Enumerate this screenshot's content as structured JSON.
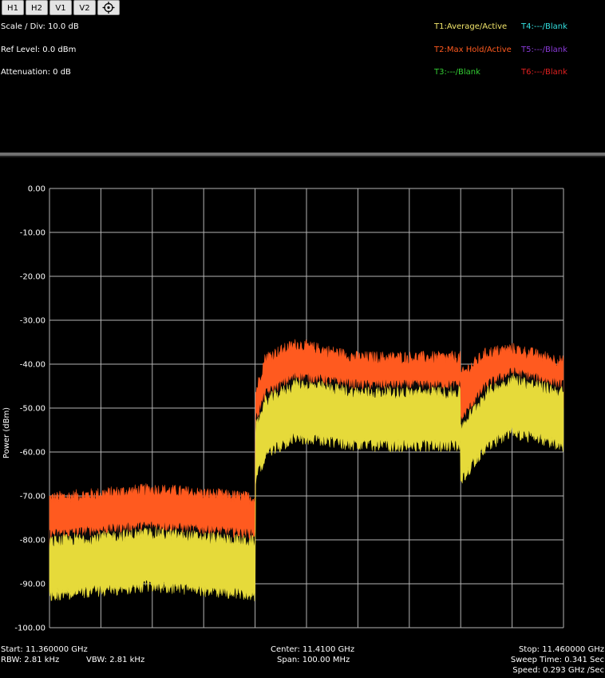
{
  "toolbar": {
    "buttons": [
      {
        "label": "H1"
      },
      {
        "label": "H2"
      },
      {
        "label": "V1"
      },
      {
        "label": "V2"
      }
    ],
    "target_icon": "crosshair-icon"
  },
  "settings": {
    "scale": "Scale / Div: 10.0 dB",
    "ref_level": "Ref Level: 0.0 dBm",
    "attenuation": "Attenuation: 0 dB"
  },
  "traces": {
    "t1": {
      "label": "T1:Average/Active",
      "color": "#f2e66b"
    },
    "t2": {
      "label": "T2:Max Hold/Active",
      "color": "#ff5a1f"
    },
    "t3": {
      "label": "T3:---/Blank",
      "color": "#33cc33"
    },
    "t4": {
      "label": "T4:---/Blank",
      "color": "#33e0e0"
    },
    "t5": {
      "label": "T5:---/Blank",
      "color": "#8a3ad8"
    },
    "t6": {
      "label": "T6:---/Blank",
      "color": "#e02020"
    }
  },
  "footer": {
    "start": "Start: 11.360000 GHz",
    "rbw": "RBW: 2.81 kHz",
    "vbw": "VBW: 2.81 kHz",
    "center": "Center: 11.4100 GHz",
    "span": "Span: 100.00 MHz",
    "stop": "Stop: 11.460000 GHz",
    "sweep_time": "Sweep Time: 0.341 Sec",
    "speed": "Speed: 0.293 GHz /Sec"
  },
  "chart_data": {
    "type": "line",
    "title": "",
    "xlabel": "",
    "ylabel": "Power (dBm)",
    "xlim": [
      11.36,
      11.46
    ],
    "ylim": [
      -100,
      0
    ],
    "y_ticks": [
      "0.00",
      "-10.00",
      "-20.00",
      "-30.00",
      "-40.00",
      "-50.00",
      "-60.00",
      "-70.00",
      "-80.00",
      "-90.00",
      "-100.00"
    ],
    "grid": true,
    "x_divisions": 10,
    "series": [
      {
        "name": "T2:Max Hold/Active",
        "color": "#ff5a1f",
        "x": [
          11.36,
          11.38,
          11.4,
          11.4001,
          11.402,
          11.408,
          11.42,
          11.4399,
          11.44,
          11.445,
          11.45,
          11.46
        ],
        "y": [
          -76,
          -74,
          -76,
          -52,
          -44,
          -41,
          -44,
          -44,
          -48,
          -43,
          -42,
          -45
        ]
      },
      {
        "name": "T1:Average/Active",
        "color": "#e6da3a",
        "x": [
          11.36,
          11.38,
          11.4,
          11.4001,
          11.402,
          11.408,
          11.42,
          11.4399,
          11.44,
          11.445,
          11.45,
          11.46
        ],
        "y": [
          -86,
          -84,
          -86,
          -60,
          -54,
          -50,
          -52,
          -52,
          -60,
          -52,
          -49,
          -52
        ]
      }
    ]
  }
}
